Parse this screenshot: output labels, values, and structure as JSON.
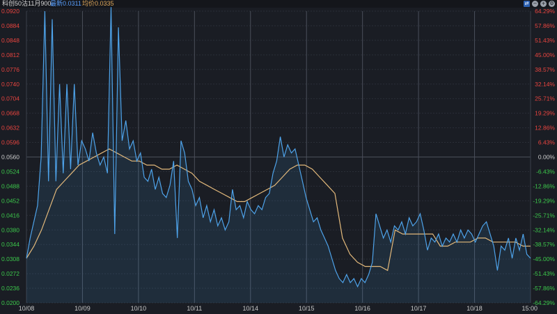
{
  "header": {
    "title": "科创50沽11月900",
    "last_label": "最新0.0311",
    "avg_label": "均价0.0335",
    "controls": [
      {
        "name": "toggle-icon",
        "glyph": "⇄"
      },
      {
        "name": "minus-icon",
        "glyph": "−"
      },
      {
        "name": "plus-icon",
        "glyph": "+"
      },
      {
        "name": "settings-icon",
        "glyph": "⚙"
      }
    ]
  },
  "chart_data": {
    "type": "line",
    "x_labels": [
      "10/08",
      "10/09",
      "10/10",
      "10/11",
      "10/14",
      "10/15",
      "10/16",
      "10/17",
      "10/18",
      "15:00"
    ],
    "y_ticks": [
      "0.0920",
      "0.0884",
      "0.0848",
      "0.0812",
      "0.0776",
      "0.0740",
      "0.0704",
      "0.0668",
      "0.0632",
      "0.0596",
      "0.0560",
      "0.0524",
      "0.0488",
      "0.0452",
      "0.0416",
      "0.0380",
      "0.0344",
      "0.0308",
      "0.0272",
      "0.0236",
      "0.0200"
    ],
    "pct_ticks": [
      "64.29%",
      "57.86%",
      "51.43%",
      "45.00%",
      "38.57%",
      "32.14%",
      "25.71%",
      "19.29%",
      "12.86%",
      "6.43%",
      "0.00%",
      "-6.43%",
      "-12.86%",
      "-19.29%",
      "-25.71%",
      "-32.14%",
      "-38.57%",
      "-45.00%",
      "-51.43%",
      "-57.86%",
      "-64.29%"
    ],
    "ylim": [
      0.02,
      0.092
    ],
    "reference_price": 0.056,
    "days": 9,
    "colors": {
      "price": "#4ea3ea",
      "avg": "#e3b97b",
      "up": "#e8443f",
      "down": "#3cc84b",
      "flat": "#cfcfcf",
      "grid": "#2b2f38",
      "axis": "#c9c9c9"
    },
    "series": [
      {
        "values": [
          0.031,
          0.036,
          0.04,
          0.044,
          0.056,
          0.092,
          0.05,
          0.09,
          0.05,
          0.074,
          0.052,
          0.074,
          0.053,
          0.074,
          0.054,
          0.06,
          0.058,
          0.055,
          0.062,
          0.057,
          0.054,
          0.056,
          0.052,
          0.093,
          0.037,
          0.088,
          0.06,
          0.065,
          0.058,
          0.06,
          0.055,
          0.057,
          0.051,
          0.05,
          0.053,
          0.048,
          0.051,
          0.047,
          0.046,
          0.049,
          0.055,
          0.036,
          0.06,
          0.057,
          0.05,
          0.048,
          0.044,
          0.046,
          0.041,
          0.044,
          0.04,
          0.043,
          0.039,
          0.041,
          0.038,
          0.04,
          0.048,
          0.043,
          0.044,
          0.041,
          0.045,
          0.043,
          0.042,
          0.044,
          0.043,
          0.046,
          0.047,
          0.052,
          0.055,
          0.061,
          0.056,
          0.059,
          0.057,
          0.058,
          0.054,
          0.05,
          0.046,
          0.043,
          0.04,
          0.041,
          0.038,
          0.036,
          0.034,
          0.031,
          0.028,
          0.026,
          0.025,
          0.027,
          0.025,
          0.026,
          0.024,
          0.026,
          0.025,
          0.027,
          0.03,
          0.042,
          0.039,
          0.036,
          0.038,
          0.035,
          0.039,
          0.038,
          0.04,
          0.037,
          0.041,
          0.039,
          0.04,
          0.042,
          0.038,
          0.033,
          0.036,
          0.035,
          0.037,
          0.034,
          0.036,
          0.035,
          0.037,
          0.035,
          0.038,
          0.036,
          0.038,
          0.037,
          0.035,
          0.037,
          0.039,
          0.04,
          0.037,
          0.034,
          0.028,
          0.034,
          0.033,
          0.036,
          0.031,
          0.036,
          0.033,
          0.037,
          0.032,
          0.031
        ]
      },
      {
        "values": [
          0.031,
          0.034,
          0.038,
          0.043,
          0.048,
          0.05,
          0.052,
          0.054,
          0.055,
          0.056,
          0.057,
          0.058,
          0.057,
          0.056,
          0.055,
          0.055,
          0.054,
          0.054,
          0.053,
          0.053,
          0.054,
          0.053,
          0.052,
          0.05,
          0.049,
          0.048,
          0.047,
          0.046,
          0.045,
          0.045,
          0.046,
          0.047,
          0.048,
          0.049,
          0.051,
          0.053,
          0.054,
          0.054,
          0.053,
          0.051,
          0.049,
          0.047,
          0.036,
          0.032,
          0.03,
          0.029,
          0.029,
          0.029,
          0.028,
          0.038,
          0.037,
          0.037,
          0.037,
          0.037,
          0.037,
          0.034,
          0.034,
          0.035,
          0.035,
          0.035,
          0.036,
          0.036,
          0.035,
          0.035,
          0.035,
          0.035,
          0.034,
          0.034
        ]
      }
    ]
  }
}
